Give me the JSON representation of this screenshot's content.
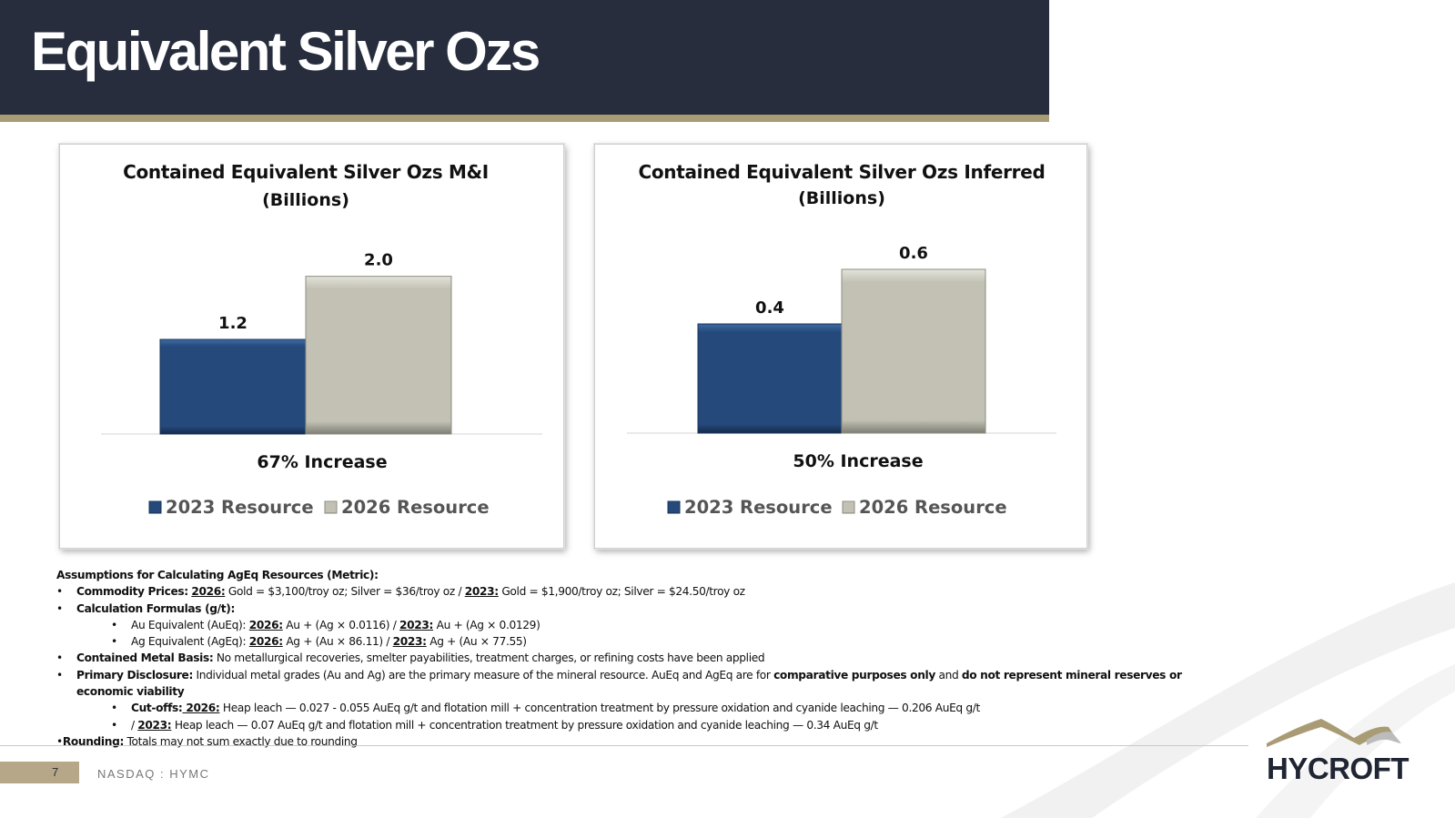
{
  "slide": {
    "title": "Equivalent Silver Ozs",
    "page_number": "7",
    "ticker": "NASDAQ : HYMC",
    "logo_text": "HYCROFT"
  },
  "colors": {
    "title_bar": "#272d3d",
    "accent_gold": "#a99b74",
    "series_2023": "#24497a",
    "series_2026": "#c2c1b4"
  },
  "chart_data": [
    {
      "type": "bar",
      "title": "Contained Equivalent Silver Ozs M&I",
      "subtitle": "(Billions)",
      "categories": [
        "2023 Resource",
        "2026 Resource"
      ],
      "values": [
        1.2,
        2.0
      ],
      "value_labels": [
        "1.2",
        "2.0"
      ],
      "annotation": "67% Increase",
      "ylim": [
        0,
        3.0
      ],
      "legend": [
        "2023 Resource",
        "2026 Resource"
      ],
      "legend_position": "bottom",
      "grid": false
    },
    {
      "type": "bar",
      "title": "Contained Equivalent Silver Ozs Inferred",
      "subtitle": "(Billions)",
      "categories": [
        "2023 Resource",
        "2026 Resource"
      ],
      "values": [
        0.4,
        0.6
      ],
      "value_labels": [
        "0.4",
        "0.6"
      ],
      "annotation": "50% Increase",
      "ylim": [
        0,
        0.9
      ],
      "legend": [
        "2023 Resource",
        "2026 Resource"
      ],
      "legend_position": "bottom",
      "grid": false
    }
  ],
  "notes": {
    "heading": "Assumptions for Calculating AgEq Resources (Metric):",
    "commodity_label": "Commodity Prices:",
    "commodity_2026_label": "2026:",
    "commodity_2026_text": " Gold = $3,100/troy oz; Silver = $36/troy oz / ",
    "commodity_2023_label": "2023:",
    "commodity_2023_text": " Gold = $1,900/troy oz; Silver = $24.50/troy oz",
    "formulas_label": "Calculation Formulas (g/t):",
    "au_eq_prefix": "Au Equivalent (AuEq): ",
    "au_eq_2026_label": "2026:",
    "au_eq_2026_text": " Au + (Ag × 0.0116) / ",
    "au_eq_2023_label": "2023:",
    "au_eq_2023_text": " Au + (Ag × 0.0129)",
    "ag_eq_prefix": "Ag Equivalent (AgEq): ",
    "ag_eq_2026_label": "2026:",
    "ag_eq_2026_text": " Ag + (Au × 86.11) / ",
    "ag_eq_2023_label": "2023:",
    "ag_eq_2023_text": " Ag + (Au × 77.55)",
    "basis_label": "Contained Metal Basis:",
    "basis_text": " No metallurgical recoveries, smelter payabilities, treatment charges, or refining costs have been applied",
    "disclosure_label": "Primary Disclosure:",
    "disclosure_text": " Individual metal grades (Au and Ag) are the primary measure of the mineral resource. AuEq and AgEq are for ",
    "disclosure_bold1": "comparative purposes only",
    "disclosure_mid": " and ",
    "disclosure_bold2": "do not represent mineral reserves or economic viability",
    "cutoffs_label": "Cut-offs:",
    "cutoffs_2026_label": " 2026:",
    "cutoffs_2026_text": " Heap leach — 0.027 - 0.055 AuEq g/t and flotation mill + concentration treatment by pressure oxidation and cyanide leaching — 0.206 AuEq g/t",
    "cutoffs_2023_prefix": "/ ",
    "cutoffs_2023_label": "2023:",
    "cutoffs_2023_text": " Heap leach — 0.07 AuEq g/t and flotation mill + concentration treatment by pressure oxidation and cyanide leaching — 0.34 AuEq g/t",
    "rounding_prefix": "•",
    "rounding_label": "Rounding:",
    "rounding_text": " Totals may not sum exactly due to rounding"
  }
}
